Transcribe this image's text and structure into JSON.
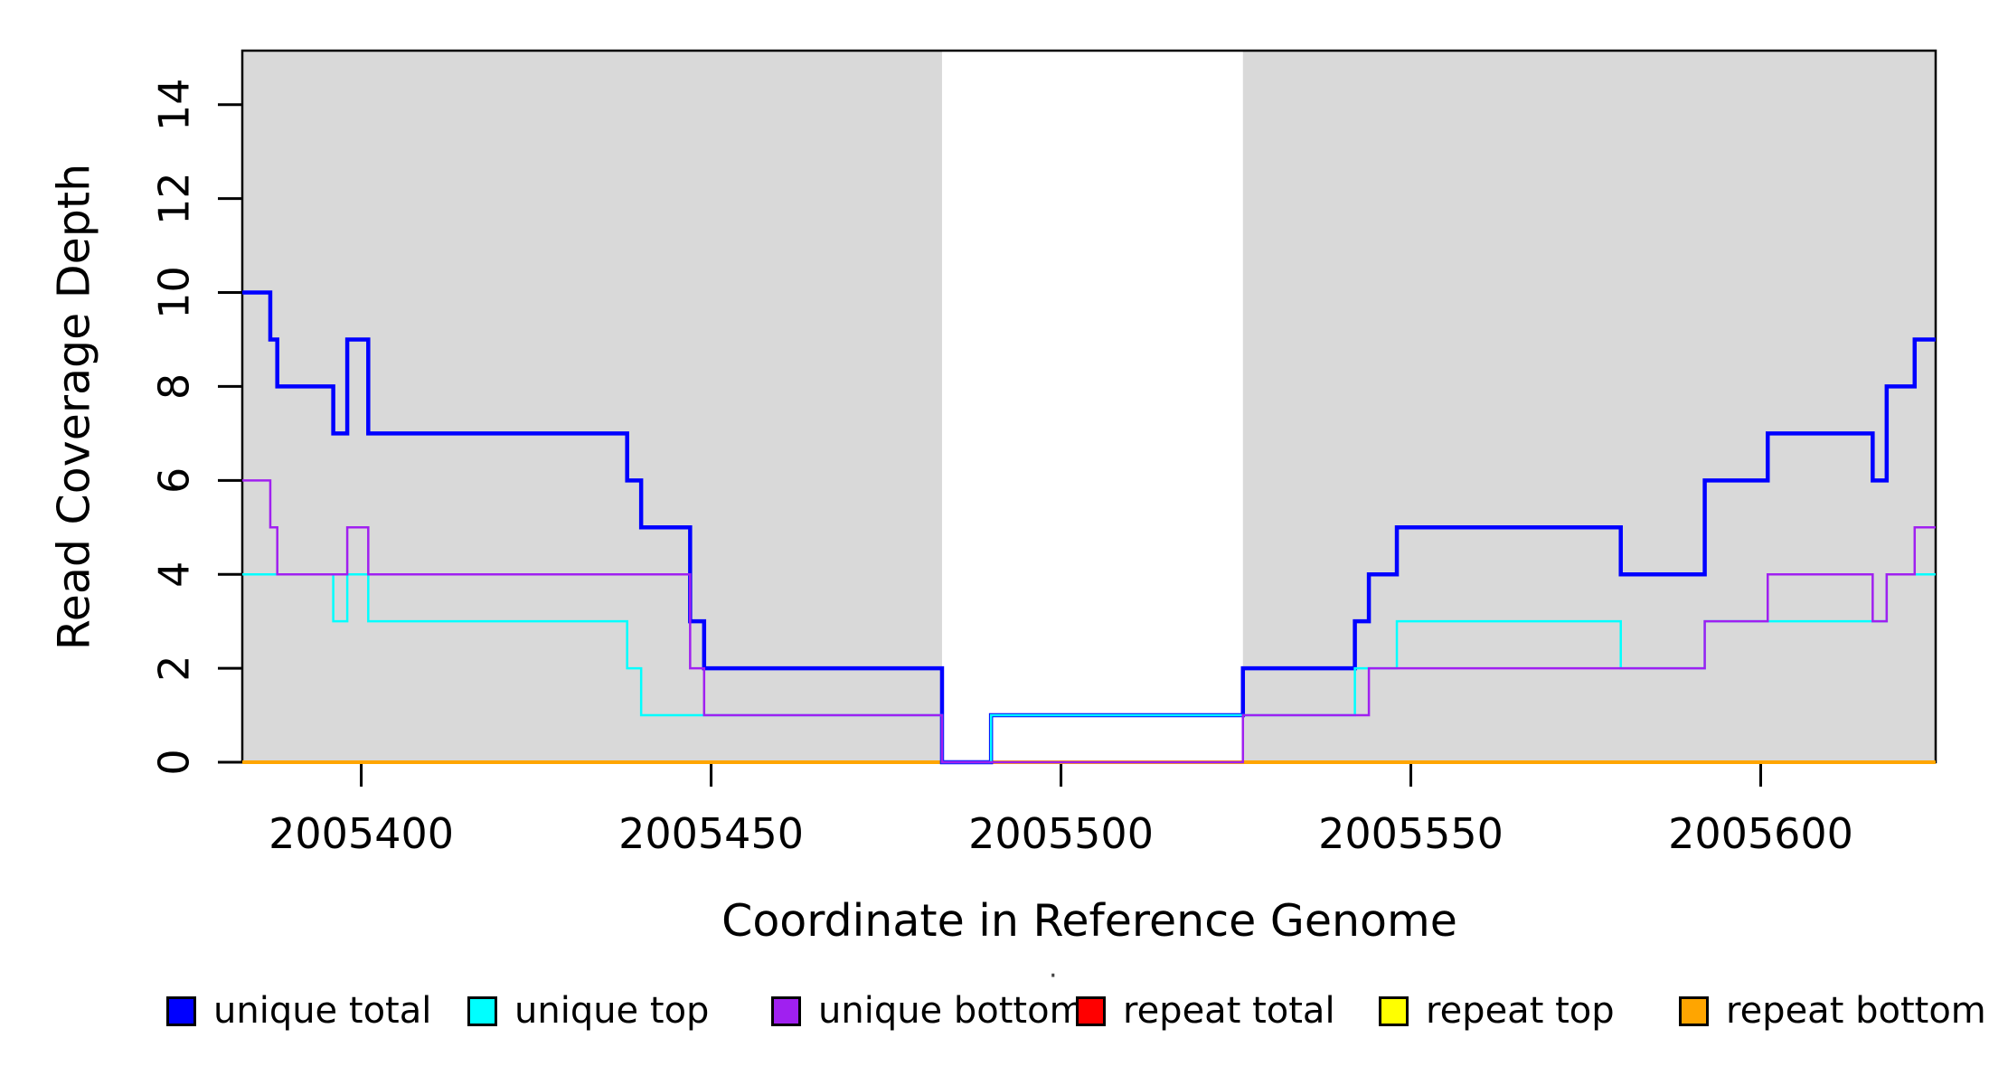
{
  "axes": {
    "x": {
      "label": "Coordinate in Reference Genome",
      "ticks": [
        2005400,
        2005450,
        2005500,
        2005550,
        2005600
      ],
      "range": [
        2005383,
        2005625
      ]
    },
    "y": {
      "label": "Read Coverage Depth",
      "ticks": [
        0,
        2,
        4,
        6,
        8,
        10,
        12,
        14
      ],
      "range": [
        0,
        15.15
      ]
    }
  },
  "legend": {
    "stray_mark": "·",
    "items": [
      {
        "label": "unique total",
        "color": "#0000ff"
      },
      {
        "label": "unique top",
        "color": "#00ffff"
      },
      {
        "label": "unique bottom",
        "color": "#a020f0"
      },
      {
        "label": "repeat total",
        "color": "#ff0000"
      },
      {
        "label": "repeat top",
        "color": "#ffff00"
      },
      {
        "label": "repeat bottom",
        "color": "#ffa500"
      }
    ]
  },
  "chart_data": {
    "type": "line",
    "style": "step-after",
    "title": "",
    "xlabel": "Coordinate in Reference Genome",
    "ylabel": "Read Coverage Depth",
    "x_range": [
      2005383,
      2005625
    ],
    "y_range": [
      0,
      15.15
    ],
    "grid": false,
    "legend_position": "bottom",
    "band_color": "#d9d9d9",
    "shaded_regions": [
      {
        "x0": 2005383,
        "x1": 2005483
      },
      {
        "x0": 2005526,
        "x1": 2005625
      }
    ],
    "x_end": 2005625,
    "series": [
      {
        "name": "repeat total",
        "color": "#ff0000",
        "width": 2.5,
        "steps": [
          [
            2005383,
            0
          ]
        ]
      },
      {
        "name": "repeat top",
        "color": "#ffff00",
        "width": 2.5,
        "steps": [
          [
            2005383,
            0
          ]
        ]
      },
      {
        "name": "repeat bottom",
        "color": "#ffa500",
        "width": 4,
        "steps": [
          [
            2005383,
            0
          ]
        ]
      },
      {
        "name": "unique total",
        "color": "#0000ff",
        "width": 4.5,
        "steps": [
          [
            2005383,
            10
          ],
          [
            2005387,
            9
          ],
          [
            2005388,
            8
          ],
          [
            2005396,
            7
          ],
          [
            2005398,
            9
          ],
          [
            2005401,
            7
          ],
          [
            2005438,
            6
          ],
          [
            2005440,
            5
          ],
          [
            2005447,
            3
          ],
          [
            2005449,
            2
          ],
          [
            2005483,
            0
          ],
          [
            2005490,
            1
          ],
          [
            2005526,
            2
          ],
          [
            2005542,
            3
          ],
          [
            2005544,
            4
          ],
          [
            2005548,
            5
          ],
          [
            2005580,
            4
          ],
          [
            2005592,
            6
          ],
          [
            2005601,
            7
          ],
          [
            2005616,
            6
          ],
          [
            2005618,
            8
          ],
          [
            2005622,
            9
          ]
        ]
      },
      {
        "name": "unique top",
        "color": "#00ffff",
        "width": 2.5,
        "steps": [
          [
            2005383,
            4
          ],
          [
            2005396,
            3
          ],
          [
            2005398,
            4
          ],
          [
            2005401,
            3
          ],
          [
            2005438,
            2
          ],
          [
            2005440,
            1
          ],
          [
            2005483,
            0
          ],
          [
            2005490,
            1
          ],
          [
            2005542,
            2
          ],
          [
            2005548,
            3
          ],
          [
            2005580,
            2
          ],
          [
            2005592,
            3
          ],
          [
            2005618,
            4
          ]
        ]
      },
      {
        "name": "unique bottom",
        "color": "#a020f0",
        "width": 2.5,
        "steps": [
          [
            2005383,
            6
          ],
          [
            2005387,
            5
          ],
          [
            2005388,
            4
          ],
          [
            2005398,
            5
          ],
          [
            2005401,
            4
          ],
          [
            2005447,
            2
          ],
          [
            2005449,
            1
          ],
          [
            2005483,
            0
          ],
          [
            2005526,
            1
          ],
          [
            2005544,
            2
          ],
          [
            2005592,
            3
          ],
          [
            2005601,
            4
          ],
          [
            2005616,
            3
          ],
          [
            2005618,
            4
          ],
          [
            2005622,
            5
          ]
        ]
      }
    ]
  }
}
